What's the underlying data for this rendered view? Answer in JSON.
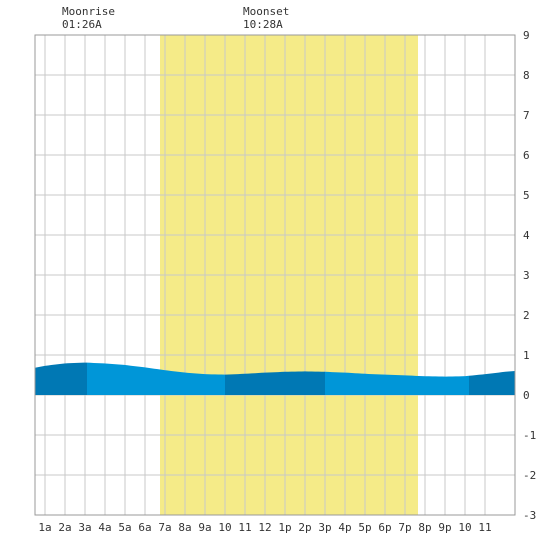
{
  "moon": {
    "rise_label": "Moonrise",
    "rise_time": "01:26A",
    "set_label": "Moonset",
    "set_time": "10:28A"
  },
  "colors": {
    "daylight": "#f5eb88",
    "tide_fill": "#0096d8",
    "tide_dark": "#0078b4",
    "grid": "#c8c8c8",
    "frame": "#999999"
  },
  "chart_data": {
    "type": "area",
    "xlim": [
      0.5,
      24.5
    ],
    "ylim": [
      -3,
      9
    ],
    "y_ticks": [
      -3,
      -2,
      -1,
      0,
      1,
      2,
      3,
      4,
      5,
      6,
      7,
      8,
      9
    ],
    "x_ticks": [
      {
        "x": 1,
        "label": "1a"
      },
      {
        "x": 2,
        "label": "2a"
      },
      {
        "x": 3,
        "label": "3a"
      },
      {
        "x": 4,
        "label": "4a"
      },
      {
        "x": 5,
        "label": "5a"
      },
      {
        "x": 6,
        "label": "6a"
      },
      {
        "x": 7,
        "label": "7a"
      },
      {
        "x": 8,
        "label": "8a"
      },
      {
        "x": 9,
        "label": "9a"
      },
      {
        "x": 10,
        "label": "10"
      },
      {
        "x": 11,
        "label": "11"
      },
      {
        "x": 12,
        "label": "12"
      },
      {
        "x": 13,
        "label": "1p"
      },
      {
        "x": 14,
        "label": "2p"
      },
      {
        "x": 15,
        "label": "3p"
      },
      {
        "x": 16,
        "label": "4p"
      },
      {
        "x": 17,
        "label": "5p"
      },
      {
        "x": 18,
        "label": "6p"
      },
      {
        "x": 19,
        "label": "7p"
      },
      {
        "x": 20,
        "label": "8p"
      },
      {
        "x": 21,
        "label": "9p"
      },
      {
        "x": 22,
        "label": "10"
      },
      {
        "x": 23,
        "label": "11"
      }
    ],
    "daylight": [
      6.75,
      19.65
    ],
    "moonrise_x": 1.43,
    "moonset_x": 10.47,
    "tide_bands": [
      {
        "from": 0.5,
        "to": 3.1,
        "shade": "dark"
      },
      {
        "from": 3.1,
        "to": 10.0,
        "shade": "light"
      },
      {
        "from": 10.0,
        "to": 15.0,
        "shade": "dark"
      },
      {
        "from": 15.0,
        "to": 22.2,
        "shade": "light"
      },
      {
        "from": 22.2,
        "to": 24.5,
        "shade": "dark"
      }
    ],
    "series": [
      {
        "x": [
          0.5,
          1,
          2,
          3,
          4,
          5,
          6,
          7,
          8,
          9,
          10,
          11,
          12,
          13,
          14,
          15,
          16,
          17,
          18,
          19,
          20,
          21,
          22,
          23,
          24,
          24.5
        ],
        "y": [
          0.68,
          0.73,
          0.79,
          0.81,
          0.79,
          0.75,
          0.69,
          0.62,
          0.56,
          0.52,
          0.51,
          0.53,
          0.56,
          0.58,
          0.59,
          0.58,
          0.56,
          0.53,
          0.51,
          0.49,
          0.47,
          0.46,
          0.47,
          0.52,
          0.58,
          0.6
        ]
      }
    ]
  }
}
